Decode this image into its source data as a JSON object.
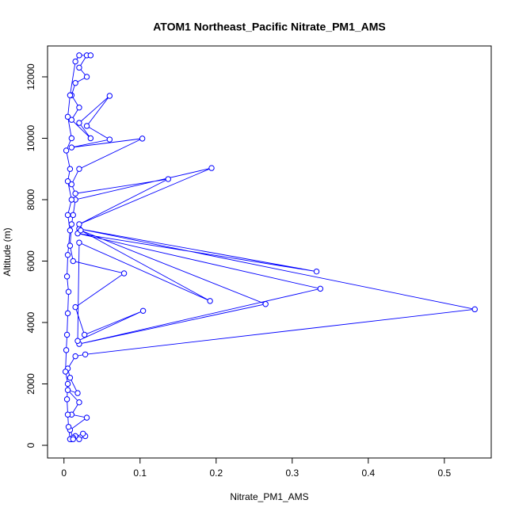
{
  "chart_data": {
    "type": "line-points",
    "title": "ATOM1 Northeast_Pacific Nitrate_PM1_AMS",
    "x_label": "Nitrate_PM1_AMS",
    "y_label": "Altitude (m)",
    "color": "#0000ff",
    "xlim": [
      -0.0216,
      0.5616
    ],
    "ylim": [
      -413,
      13006
    ],
    "xticks": [
      0.0,
      0.1,
      0.2,
      0.3,
      0.4,
      0.5
    ],
    "yticks": [
      0,
      2000,
      4000,
      6000,
      8000,
      10000,
      12000
    ],
    "x": [
      0.01,
      0.015,
      0.02,
      0.028,
      0.025,
      0.012,
      0.008,
      0.03,
      0.01,
      0.02,
      0.005,
      0.018,
      0.008,
      0.005,
      0.015,
      0.028,
      0.54,
      0.02,
      0.332,
      0.018,
      0.337,
      0.02,
      0.265,
      0.022,
      0.192,
      0.02,
      0.018,
      0.104,
      0.027,
      0.015,
      0.079,
      0.012,
      0.008,
      0.01,
      0.012,
      0.015,
      0.194,
      0.02,
      0.137,
      0.015,
      0.01,
      0.02,
      0.103,
      0.01,
      0.06,
      0.03,
      0.06,
      0.02,
      0.035,
      0.01,
      0.02,
      0.01,
      0.015,
      0.03,
      0.02,
      0.03,
      0.035,
      0.02,
      0.015,
      0.008,
      0.005,
      0.01,
      0.003,
      0.008,
      0.005,
      0.01,
      0.005,
      0.008,
      0.005,
      0.004,
      0.006,
      0.005,
      0.004,
      0.003,
      0.002,
      0.005,
      0.004,
      0.005,
      0.006,
      0.008,
      0.012
    ],
    "y": [
      200,
      300,
      200,
      300,
      380,
      250,
      500,
      900,
      1000,
      1400,
      1800,
      1700,
      2200,
      2500,
      2900,
      2960,
      4430,
      7050,
      5660,
      6900,
      5100,
      3300,
      4600,
      7000,
      4700,
      6600,
      3400,
      4380,
      3600,
      4500,
      5600,
      6000,
      6500,
      7200,
      7500,
      8000,
      9030,
      7200,
      8670,
      8200,
      8500,
      9000,
      9990,
      9700,
      9960,
      10400,
      11380,
      10500,
      10000,
      10600,
      11000,
      11400,
      11800,
      12000,
      12300,
      12700,
      12700,
      12700,
      12500,
      11400,
      10700,
      10000,
      9600,
      9000,
      8600,
      8000,
      7500,
      7000,
      6200,
      5500,
      5000,
      4300,
      3600,
      3100,
      2400,
      2000,
      1500,
      1000,
      600,
      200,
      200
    ]
  }
}
